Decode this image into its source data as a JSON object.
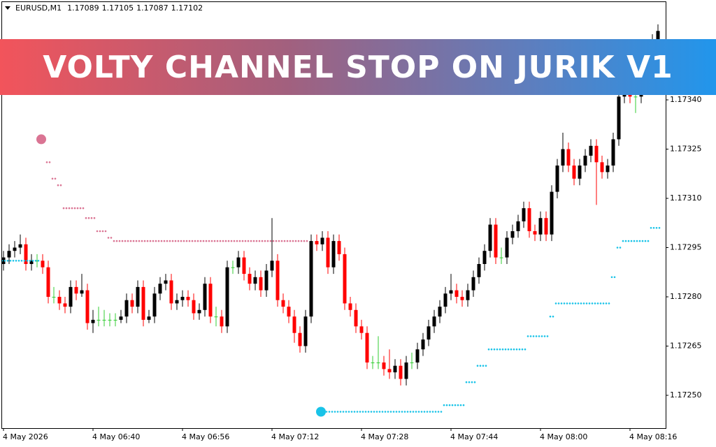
{
  "chart_data": {
    "type": "candlestick",
    "title": "VOLTY CHANNEL STOP ON JURIK V1",
    "header": {
      "symbol": "EURUSD,M1",
      "open": 1.17089,
      "high": 1.17105,
      "low": 1.17087,
      "close": 1.17102
    },
    "categories": [
      "4 May 2026",
      null,
      null,
      null,
      null,
      null,
      null,
      null,
      null,
      null,
      null,
      null,
      null,
      null,
      null,
      null,
      "4 May 06:40",
      null,
      null,
      null,
      null,
      null,
      null,
      null,
      null,
      null,
      null,
      null,
      null,
      null,
      null,
      null,
      "4 May 06:56",
      null,
      null,
      null,
      null,
      null,
      null,
      null,
      null,
      null,
      null,
      null,
      null,
      null,
      null,
      null,
      "4 May 07:12",
      null,
      null,
      null,
      null,
      null,
      null,
      null,
      null,
      null,
      null,
      null,
      null,
      null,
      null,
      null,
      "4 May 07:28",
      null,
      null,
      null,
      null,
      null,
      null,
      null,
      null,
      null,
      null,
      null,
      null,
      null,
      null,
      null,
      "4 May 07:44",
      null,
      null,
      null,
      null,
      null,
      null,
      null,
      null,
      null,
      null,
      null,
      null,
      null,
      null,
      null,
      "4 May 08:00",
      null,
      null,
      null,
      null,
      null,
      null,
      null,
      null,
      null,
      null,
      null,
      null,
      null,
      null,
      null,
      "4 May 08:16",
      null,
      null,
      null,
      null,
      null
    ],
    "open": [
      1.1729,
      1.17292,
      1.17294,
      1.17295,
      1.17296,
      1.1729,
      1.17291,
      1.17291,
      1.17289,
      1.1728,
      1.1728,
      1.17278,
      1.17277,
      1.17283,
      1.17281,
      1.17282,
      1.17272,
      1.17273,
      1.17273,
      1.17273,
      1.17273,
      1.17273,
      1.17274,
      1.17279,
      1.17277,
      1.17283,
      1.17273,
      1.17274,
      1.17281,
      1.17284,
      1.17285,
      1.17278,
      1.17279,
      1.1728,
      1.17279,
      1.17275,
      1.17276,
      1.17284,
      1.17274,
      1.17274,
      1.17271,
      1.17289,
      1.17289,
      1.17292,
      1.17287,
      1.17284,
      1.17286,
      1.17282,
      1.17288,
      1.17291,
      1.17279,
      1.17277,
      1.17274,
      1.17269,
      1.17265,
      1.17274,
      1.17297,
      1.17296,
      1.17298,
      1.17289,
      1.17297,
      1.17293,
      1.17278,
      1.17276,
      1.17271,
      1.17269,
      1.1726,
      1.1726,
      1.1726,
      1.17258,
      1.17257,
      1.17259,
      1.17255,
      1.1726,
      1.1726,
      1.17264,
      1.17267,
      1.17271,
      1.17274,
      1.17277,
      1.17281,
      1.17282,
      1.1728,
      1.17279,
      1.17282,
      1.17286,
      1.1729,
      1.17294,
      1.17302,
      1.17292,
      1.17292,
      1.17298,
      1.173,
      1.17303,
      1.17307,
      1.173,
      1.17299,
      1.17304,
      1.17299,
      1.17312,
      1.1732,
      1.17325,
      1.1732,
      1.17316,
      1.1732,
      1.17323,
      1.17326,
      1.17321,
      1.17318,
      1.1732,
      1.17328,
      1.17341,
      1.17347,
      1.17341,
      1.17341,
      1.17347,
      1.17354,
      1.17358
    ],
    "high": [
      1.17294,
      1.17296,
      1.17297,
      1.17299,
      1.17298,
      1.17293,
      1.17293,
      1.17293,
      1.17291,
      1.17283,
      1.17282,
      1.1728,
      1.17285,
      1.17285,
      1.17287,
      1.17284,
      1.17276,
      1.17277,
      1.17276,
      1.17275,
      1.17275,
      1.17276,
      1.17281,
      1.17281,
      1.17285,
      1.17285,
      1.17276,
      1.17283,
      1.17286,
      1.17287,
      1.17287,
      1.17281,
      1.17282,
      1.17282,
      1.17281,
      1.17278,
      1.17286,
      1.17286,
      1.17277,
      1.17276,
      1.17291,
      1.17291,
      1.17294,
      1.17294,
      1.17289,
      1.17288,
      1.17288,
      1.1729,
      1.17304,
      1.17293,
      1.17281,
      1.17279,
      1.17276,
      1.17271,
      1.17276,
      1.17299,
      1.17299,
      1.173,
      1.173,
      1.17299,
      1.17299,
      1.17295,
      1.1728,
      1.17278,
      1.17273,
      1.17271,
      1.17262,
      1.17268,
      1.17262,
      1.17264,
      1.17261,
      1.17261,
      1.17262,
      1.17263,
      1.17266,
      1.17269,
      1.17273,
      1.17276,
      1.17279,
      1.17283,
      1.17287,
      1.17284,
      1.17282,
      1.17284,
      1.17288,
      1.17292,
      1.17296,
      1.17304,
      1.17304,
      1.17295,
      1.173,
      1.17302,
      1.17305,
      1.17309,
      1.17309,
      1.17302,
      1.17306,
      1.17306,
      1.17314,
      1.17322,
      1.1733,
      1.17327,
      1.17322,
      1.17322,
      1.17325,
      1.17328,
      1.17328,
      1.17323,
      1.17322,
      1.1733,
      1.17343,
      1.17349,
      1.17349,
      1.17343,
      1.17349,
      1.17356,
      1.1736,
      1.17363
    ],
    "low": [
      1.17288,
      1.1729,
      1.17292,
      1.17293,
      1.17288,
      1.17288,
      1.17289,
      1.17287,
      1.17278,
      1.17278,
      1.17276,
      1.17275,
      1.17275,
      1.17279,
      1.1728,
      1.1727,
      1.17269,
      1.17271,
      1.17271,
      1.17271,
      1.17271,
      1.17272,
      1.17272,
      1.17275,
      1.17275,
      1.17271,
      1.17272,
      1.17272,
      1.17279,
      1.17282,
      1.17276,
      1.17276,
      1.17277,
      1.17277,
      1.17273,
      1.17273,
      1.17274,
      1.17272,
      1.17271,
      1.17269,
      1.17269,
      1.17287,
      1.17287,
      1.17285,
      1.17282,
      1.17282,
      1.1728,
      1.1728,
      1.17286,
      1.17277,
      1.17275,
      1.17272,
      1.17266,
      1.17263,
      1.17263,
      1.17272,
      1.17294,
      1.17294,
      1.17287,
      1.17287,
      1.17291,
      1.17276,
      1.17274,
      1.17269,
      1.17267,
      1.17258,
      1.17258,
      1.17258,
      1.17256,
      1.17255,
      1.17255,
      1.17253,
      1.17253,
      1.17258,
      1.17258,
      1.17262,
      1.17265,
      1.17269,
      1.17272,
      1.17275,
      1.17279,
      1.17278,
      1.17277,
      1.17277,
      1.1728,
      1.17284,
      1.17288,
      1.17292,
      1.1729,
      1.1729,
      1.1729,
      1.17296,
      1.17298,
      1.17301,
      1.17298,
      1.17297,
      1.17297,
      1.17297,
      1.17297,
      1.1731,
      1.17318,
      1.17318,
      1.17314,
      1.17314,
      1.17318,
      1.17321,
      1.17308,
      1.17316,
      1.17316,
      1.17318,
      1.17326,
      1.17339,
      1.17339,
      1.17336,
      1.17339,
      1.17345,
      1.17352,
      1.17356
    ],
    "close": [
      1.17292,
      1.17294,
      1.17295,
      1.17296,
      1.1729,
      1.17291,
      1.17291,
      1.17289,
      1.1728,
      1.1728,
      1.17278,
      1.17277,
      1.17283,
      1.17281,
      1.17282,
      1.17272,
      1.17273,
      1.17273,
      1.17273,
      1.17273,
      1.17273,
      1.17274,
      1.17279,
      1.17277,
      1.17283,
      1.17273,
      1.17274,
      1.17281,
      1.17284,
      1.17285,
      1.17278,
      1.17279,
      1.1728,
      1.17279,
      1.17275,
      1.17276,
      1.17284,
      1.17274,
      1.17274,
      1.17271,
      1.17289,
      1.17289,
      1.17292,
      1.17287,
      1.17284,
      1.17286,
      1.17282,
      1.17288,
      1.17291,
      1.17279,
      1.17277,
      1.17274,
      1.17269,
      1.17265,
      1.17274,
      1.17297,
      1.17296,
      1.17298,
      1.17289,
      1.17297,
      1.17293,
      1.17278,
      1.17276,
      1.17271,
      1.17269,
      1.1726,
      1.1726,
      1.1726,
      1.17258,
      1.17257,
      1.17259,
      1.17255,
      1.1726,
      1.1726,
      1.17264,
      1.17267,
      1.17271,
      1.17274,
      1.17277,
      1.17281,
      1.17282,
      1.1728,
      1.17279,
      1.17282,
      1.17286,
      1.1729,
      1.17294,
      1.17302,
      1.17292,
      1.17292,
      1.17298,
      1.173,
      1.17303,
      1.17307,
      1.173,
      1.17299,
      1.17304,
      1.17299,
      1.17312,
      1.1732,
      1.17325,
      1.1732,
      1.17316,
      1.1732,
      1.17323,
      1.17326,
      1.17321,
      1.17318,
      1.1732,
      1.17328,
      1.17341,
      1.17347,
      1.17341,
      1.17341,
      1.17347,
      1.17354,
      1.17358,
      1.17361
    ],
    "up_color": "#000000",
    "down_color": "#ff0000",
    "doji_color": "#33cc33",
    "stops": [
      {
        "color": "#da7493",
        "values": [
          null,
          null,
          null,
          null,
          null,
          null,
          null,
          1.17328,
          1.17321,
          1.17316,
          1.17314,
          1.17307,
          1.17307,
          1.17307,
          1.17307,
          1.17304,
          1.17304,
          1.173,
          1.173,
          1.17298,
          1.17297,
          1.17297,
          1.17297,
          1.17297,
          1.17297,
          1.17297,
          1.17297,
          1.17297,
          1.17297,
          1.17297,
          1.17297,
          1.17297,
          1.17297,
          1.17297,
          1.17297,
          1.17297,
          1.17297,
          1.17297,
          1.17297,
          1.17297,
          1.17297,
          1.17297,
          1.17297,
          1.17297,
          1.17297,
          1.17297,
          1.17297,
          1.17297,
          1.17297,
          1.17297,
          1.17297,
          1.17297,
          1.17297,
          1.17297,
          1.17297,
          null,
          null,
          null,
          null,
          null,
          null,
          null,
          null,
          null,
          null,
          null,
          null,
          null,
          null,
          null,
          null,
          null,
          null,
          null,
          null,
          null,
          null,
          null,
          null,
          null,
          null,
          null,
          null,
          null,
          null,
          null,
          null,
          null,
          null,
          null,
          null,
          null,
          null,
          null,
          null,
          null,
          null,
          null,
          null,
          null,
          null,
          null,
          null,
          null,
          null,
          null,
          null,
          null,
          null,
          null,
          null,
          null,
          null,
          null,
          null,
          null,
          null,
          null
        ]
      },
      {
        "color": "#19c3e8",
        "values": [
          1.17291,
          1.17291,
          1.17291,
          1.17291,
          1.17291,
          1.17291,
          1.17291,
          null,
          null,
          null,
          null,
          null,
          null,
          null,
          null,
          null,
          null,
          null,
          null,
          null,
          null,
          null,
          null,
          null,
          null,
          null,
          null,
          null,
          null,
          null,
          null,
          null,
          null,
          null,
          null,
          null,
          null,
          null,
          null,
          null,
          null,
          null,
          null,
          null,
          null,
          null,
          null,
          null,
          null,
          null,
          null,
          null,
          null,
          null,
          null,
          null,
          null,
          1.17245,
          1.17245,
          1.17245,
          1.17245,
          1.17245,
          1.17245,
          1.17245,
          1.17245,
          1.17245,
          1.17245,
          1.17245,
          1.17245,
          1.17245,
          1.17245,
          1.17245,
          1.17245,
          1.17245,
          1.17245,
          1.17245,
          1.17245,
          1.17245,
          1.17245,
          1.17247,
          1.17247,
          1.17247,
          1.17247,
          1.17254,
          1.17254,
          1.17259,
          1.17259,
          1.17264,
          1.17264,
          1.17264,
          1.17264,
          1.17264,
          1.17264,
          1.17264,
          1.17268,
          1.17268,
          1.17268,
          1.17268,
          1.17274,
          1.17278,
          1.17278,
          1.17278,
          1.17278,
          1.17278,
          1.17278,
          1.17278,
          1.17278,
          1.17278,
          1.17278,
          1.17286,
          1.17295,
          1.17297,
          1.17297,
          1.17297,
          1.17297,
          1.17297,
          1.17301,
          1.17301
        ]
      }
    ],
    "ylim": [
      1.1724,
      1.1737
    ],
    "yticks": [
      {
        "value": 1.1725,
        "label": "1.17250"
      },
      1.17265,
      {
        "value": 1.1728,
        "label": "1.17280"
      },
      1.17295,
      {
        "value": 1.1731,
        "label": "1.17310"
      },
      1.17325,
      {
        "value": 1.1734,
        "label": "1.17340"
      }
    ],
    "grid": false
  }
}
